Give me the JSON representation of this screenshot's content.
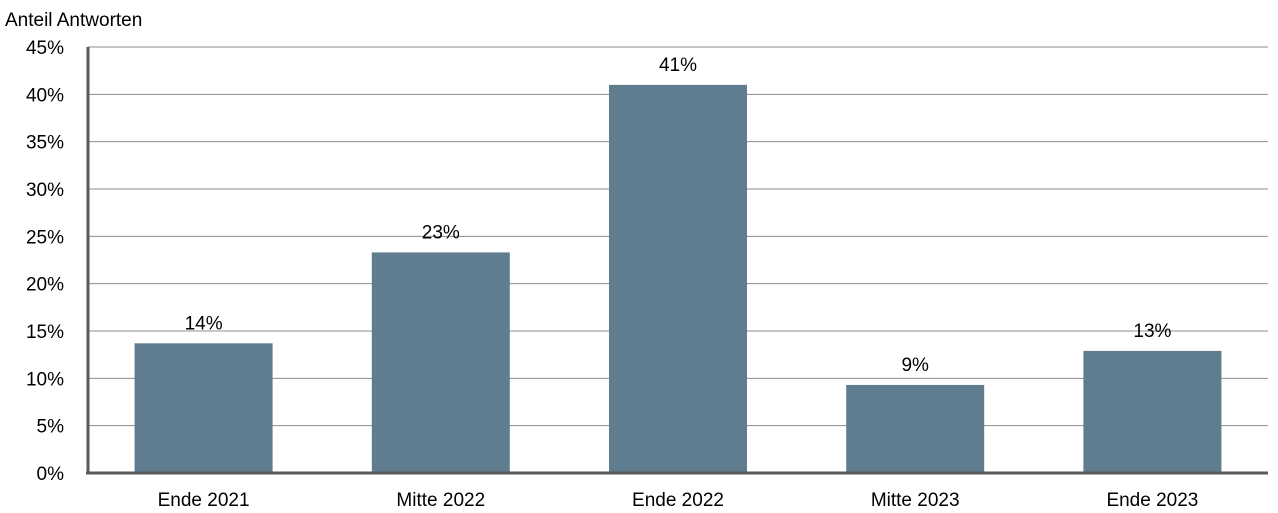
{
  "chart_data": {
    "type": "bar",
    "ylabel": "Anteil Antworten",
    "categories": [
      "Ende 2021",
      "Mitte 2022",
      "Ende 2022",
      "Mitte 2023",
      "Ende 2023"
    ],
    "values": [
      13.7,
      23.3,
      41.0,
      9.3,
      12.9
    ],
    "data_labels": [
      "14%",
      "23%",
      "41%",
      "9%",
      "13%"
    ],
    "ylim": [
      0,
      45
    ],
    "yticks": [
      0,
      5,
      10,
      15,
      20,
      25,
      30,
      35,
      40,
      45
    ],
    "ytick_labels": [
      "0%",
      "5%",
      "10%",
      "15%",
      "20%",
      "25%",
      "30%",
      "35%",
      "40%",
      "45%"
    ],
    "grid": true,
    "colors": {
      "bar": "#5f7d8f",
      "grid": "#8c8c8c",
      "axis": "#595959"
    }
  }
}
